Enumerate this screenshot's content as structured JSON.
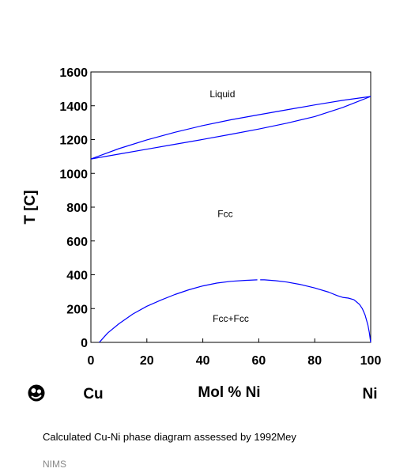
{
  "chart_data": {
    "type": "line",
    "title": "",
    "xlabel": "Mol % Ni",
    "ylabel": "T [C]",
    "xlim": [
      0,
      100
    ],
    "ylim": [
      0,
      1600
    ],
    "x_ticks": [
      0,
      20,
      40,
      60,
      80,
      100
    ],
    "y_ticks": [
      0,
      200,
      400,
      600,
      800,
      1000,
      1200,
      1400,
      1600
    ],
    "grid": false,
    "left_element": "Cu",
    "right_element": "Ni",
    "series_color": "#0000ff",
    "regions": [
      {
        "label": "Liquid",
        "x": 47,
        "y": 1470
      },
      {
        "label": "Fcc",
        "x": 48,
        "y": 760
      },
      {
        "label": "Fcc+Fcc",
        "x": 50,
        "y": 140
      }
    ],
    "series": [
      {
        "x": [
          0,
          10,
          20,
          30,
          40,
          50,
          60,
          70,
          80,
          90,
          100
        ],
        "y": [
          1085,
          1146,
          1198,
          1243,
          1283,
          1317,
          1347,
          1376,
          1405,
          1432,
          1455
        ]
      },
      {
        "x": [
          0,
          10,
          20,
          30,
          40,
          50,
          60,
          70,
          80,
          90,
          100
        ],
        "y": [
          1085,
          1114,
          1143,
          1172,
          1201,
          1231,
          1262,
          1297,
          1336,
          1390,
          1455
        ]
      },
      {
        "x": [
          3,
          6,
          10,
          15,
          20,
          25,
          30,
          35,
          40,
          45,
          50,
          55,
          58,
          59.5
        ],
        "y": [
          0,
          55,
          110,
          168,
          214,
          250,
          283,
          311,
          334,
          351,
          361,
          367,
          369,
          370
        ]
      },
      {
        "x": [
          60.5,
          62,
          66,
          70,
          75,
          80,
          85,
          88,
          90,
          92,
          94,
          96,
          97,
          98,
          99,
          99.5,
          100
        ],
        "y": [
          370,
          370,
          365,
          357,
          342,
          322,
          297,
          277,
          266,
          262,
          252,
          225,
          200,
          162,
          102,
          60,
          0
        ]
      }
    ]
  },
  "caption": "Calculated Cu-Ni phase diagram assessed by 1992Mey",
  "credit": "NIMS",
  "logo_icon": "nims-logo-icon"
}
